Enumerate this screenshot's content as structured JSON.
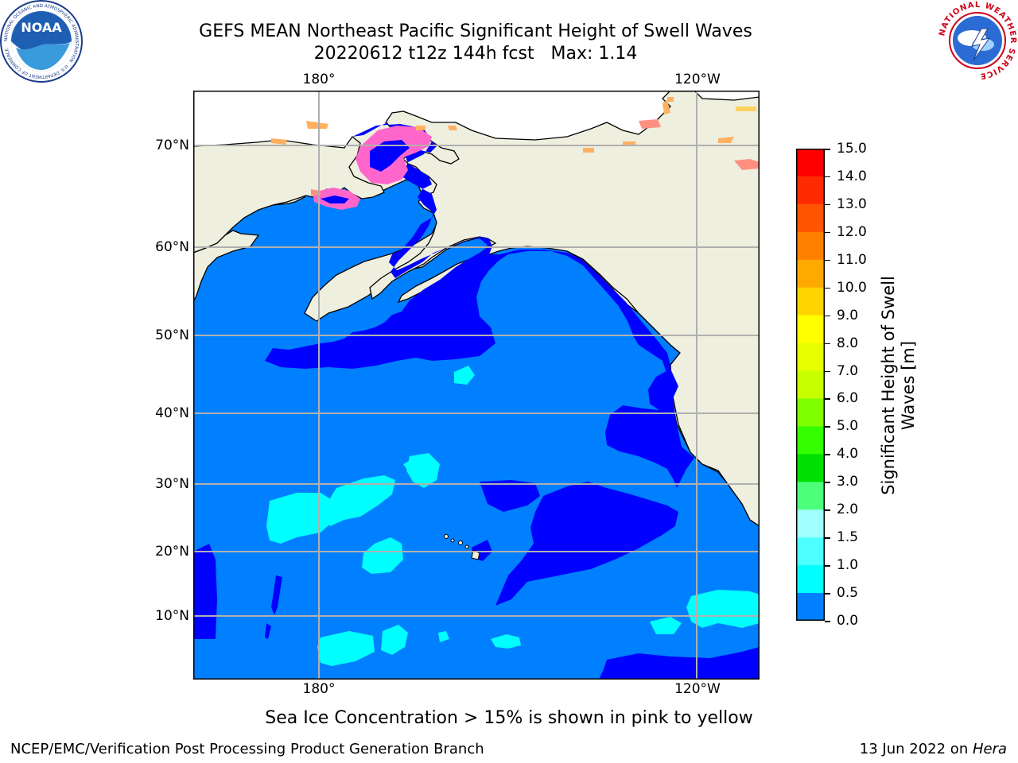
{
  "header": {
    "title": "GEFS MEAN Northeast Pacific Significant Height of Swell Waves",
    "subtitle": "20220612 t12z 144h fcst   Max: 1.14"
  },
  "logos": {
    "noaa_text": "NOAA",
    "noaa_ring": "NATIONAL OCEANIC AND ATMOSPHERIC ADMINISTRATION · U.S. DEPARTMENT OF COMMERCE",
    "nws_ring": "NATIONAL WEATHER SERVICE"
  },
  "map": {
    "lon_labels_top": [
      "180°",
      "120°W"
    ],
    "lon_labels_bottom": [
      "180°",
      "120°W"
    ],
    "lat_labels": [
      "70°N",
      "60°N",
      "50°N",
      "40°N",
      "30°N",
      "20°N",
      "10°N"
    ],
    "colors": {
      "land": "#efefdf",
      "ocean_low": "#0000ff",
      "ocean_mid": "#0080ff",
      "ocean_high": "#00ffff",
      "ocean_high2": "#4dffff",
      "grid": "#b0b0b0",
      "ice_pink": "#ff66cc",
      "ice_orange": "#ffb060"
    }
  },
  "colorbar": {
    "label": "Significant Height of Swell Waves [m]",
    "ticks": [
      "15.0",
      "14.0",
      "13.0",
      "12.0",
      "11.0",
      "10.0",
      "9.0",
      "8.0",
      "7.0",
      "6.0",
      "5.0",
      "4.0",
      "3.0",
      "2.0",
      "1.5",
      "1.0",
      "0.5",
      "0.0"
    ],
    "colors": [
      "#ff0000",
      "#ff2a00",
      "#ff5500",
      "#ff8000",
      "#ffaa00",
      "#ffd400",
      "#ffff00",
      "#e8ff00",
      "#c8ff00",
      "#80ff00",
      "#33ff00",
      "#00e000",
      "#4dff7a",
      "#a0ffff",
      "#4dffff",
      "#00ffff",
      "#0080ff",
      "#0000ff"
    ]
  },
  "note": "Sea Ice Concentration > 15% is shown in pink to yellow",
  "footer": {
    "left": "NCEP/EMC/Verification Post Processing Product Generation Branch",
    "right_prefix": "13 Jun 2022 on ",
    "right_host": "Hera"
  }
}
